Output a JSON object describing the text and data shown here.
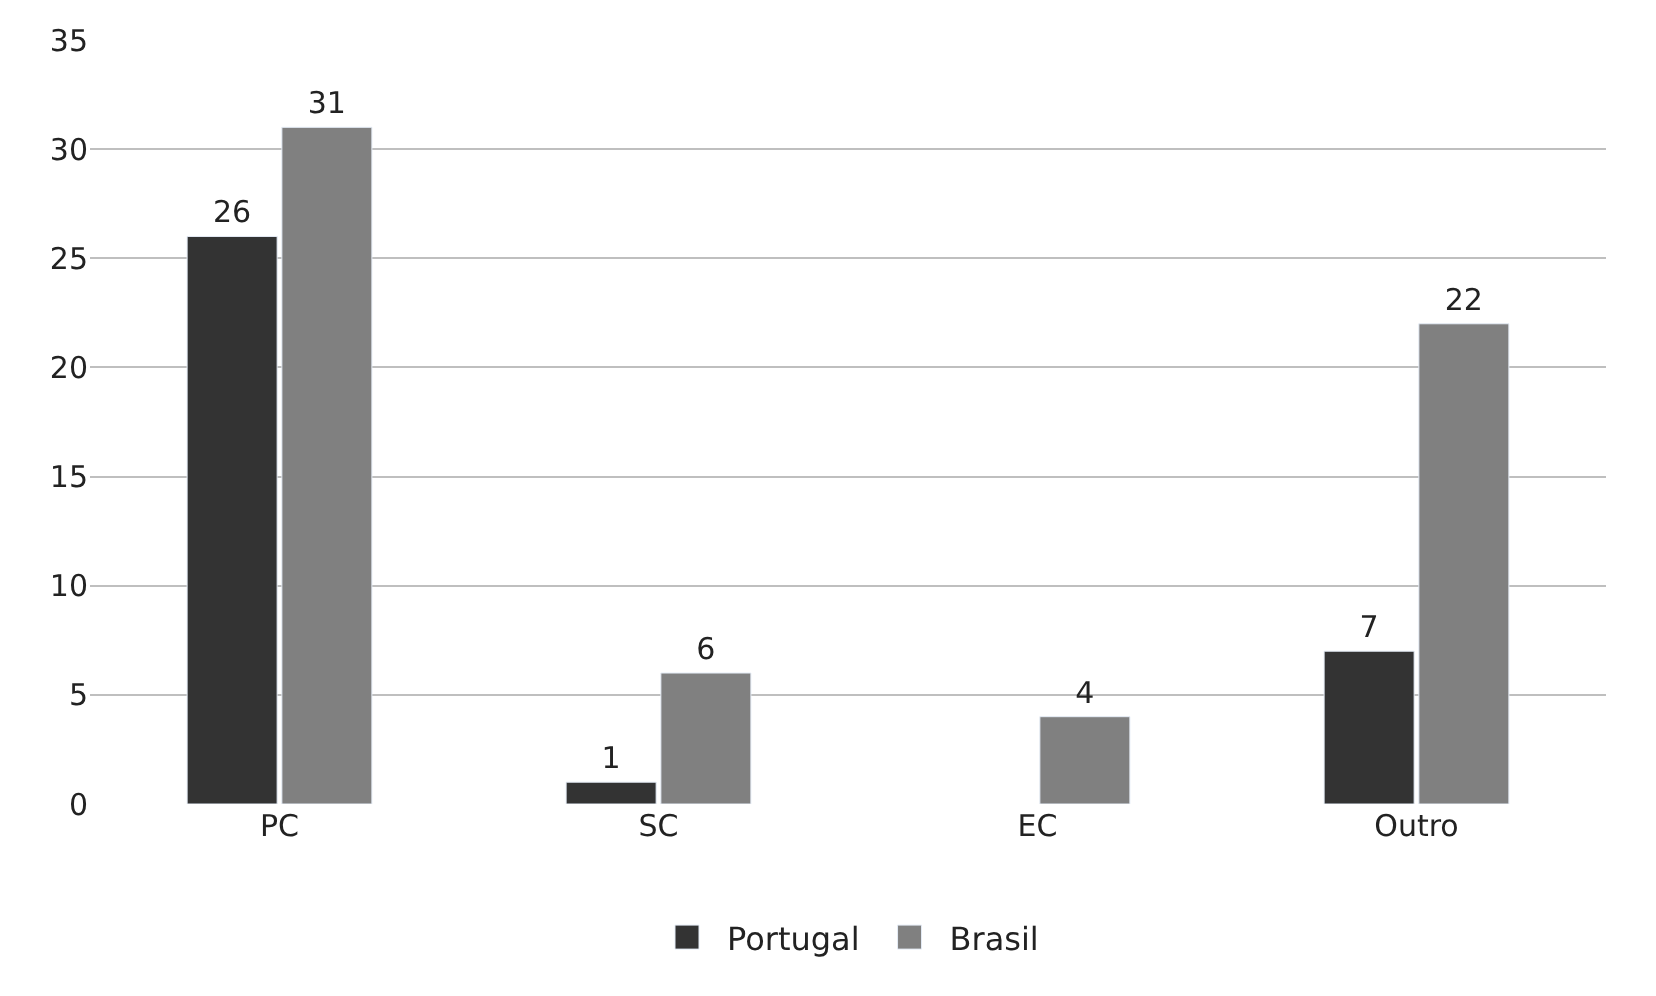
{
  "chart_data": {
    "type": "bar",
    "categories": [
      "PC",
      "SC",
      "EC",
      "Outro"
    ],
    "series": [
      {
        "name": "Portugal",
        "color": "#333333",
        "values": [
          26,
          1,
          null,
          7
        ]
      },
      {
        "name": "Brasil",
        "color": "#808080",
        "values": [
          31,
          6,
          4,
          22
        ]
      }
    ],
    "ylim": [
      0,
      35
    ],
    "yticks": [
      0,
      5,
      10,
      15,
      20,
      25,
      30,
      35
    ],
    "grid": "y",
    "legend": "bottom",
    "data_labels": true
  }
}
